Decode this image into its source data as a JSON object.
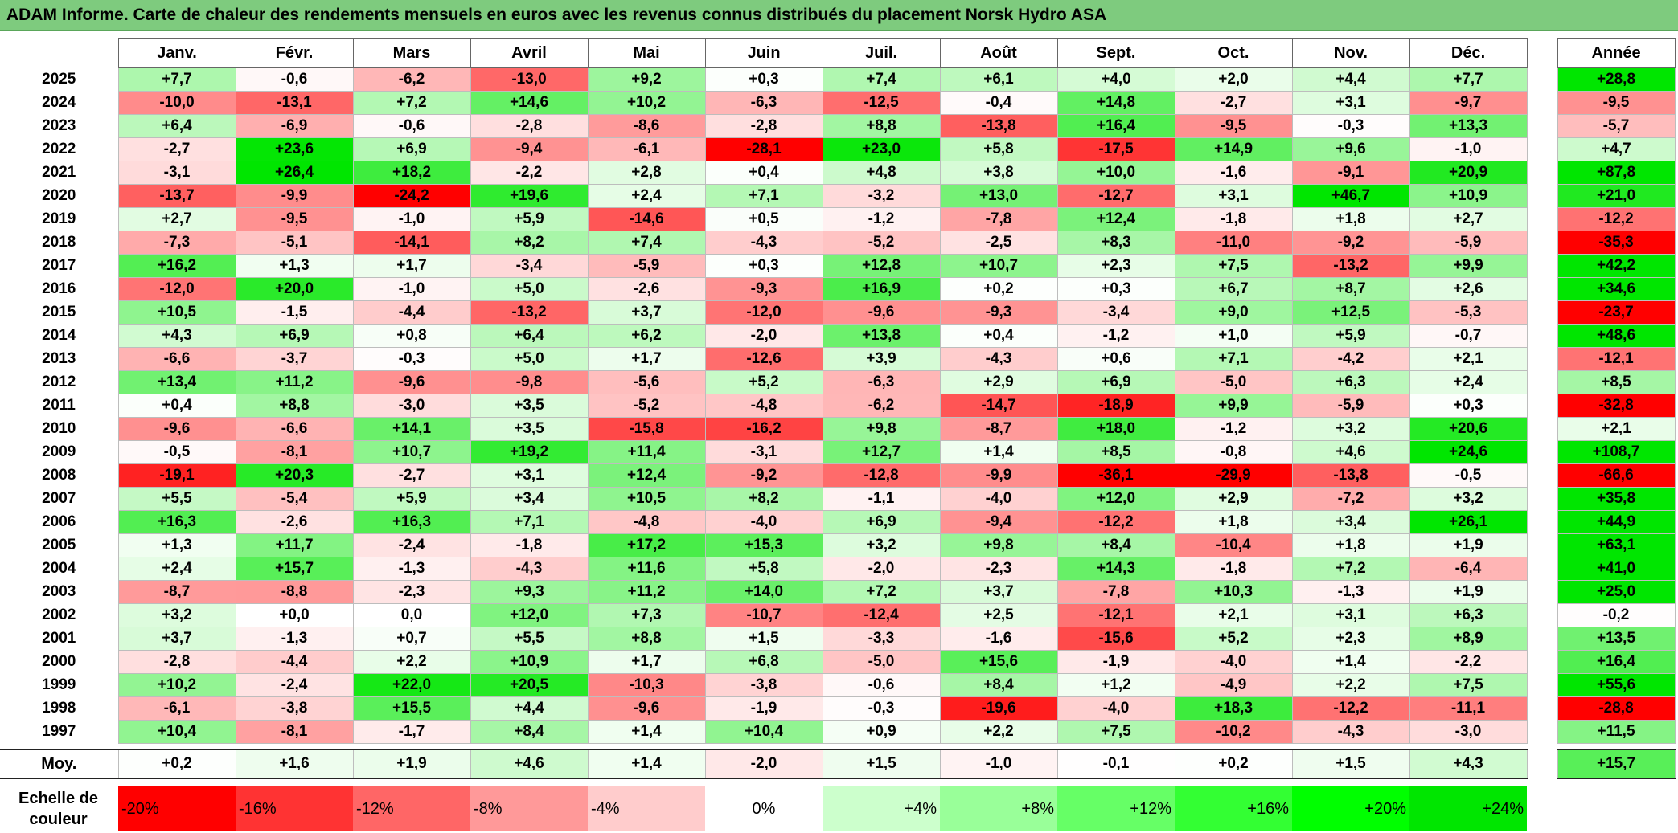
{
  "title": "ADAM Informe. Carte de chaleur des rendements mensuels en euros avec les revenus connus distribués du placement Norsk Hydro ASA",
  "colors": {
    "title_bg": "#7ecb7e",
    "strong_red": "#ff0000",
    "strong_green": "#00e000"
  },
  "chart_data": {
    "type": "heatmap",
    "title": "ADAM Informe. Carte de chaleur des rendements mensuels en euros avec les revenus connus distribués du placement Norsk Hydro ASA",
    "months": [
      "Janv.",
      "Févr.",
      "Mars",
      "Avril",
      "Mai",
      "Juin",
      "Juil.",
      "Août",
      "Sept.",
      "Oct.",
      "Nov.",
      "Déc."
    ],
    "annual_header": "Année",
    "rows": [
      {
        "year": "2025",
        "values": [
          "+7,7",
          "-0,6",
          "-6,2",
          "-13,0",
          "+9,2",
          "+0,3",
          "+7,4",
          "+6,1",
          "+4,0",
          "+2,0",
          "+4,4",
          "+7,7"
        ],
        "annual": "+28,8"
      },
      {
        "year": "2024",
        "values": [
          "-10,0",
          "-13,1",
          "+7,2",
          "+14,6",
          "+10,2",
          "-6,3",
          "-12,5",
          "-0,4",
          "+14,8",
          "-2,7",
          "+3,1",
          "-9,7"
        ],
        "annual": "-9,5"
      },
      {
        "year": "2023",
        "values": [
          "+6,4",
          "-6,9",
          "-0,6",
          "-2,8",
          "-8,6",
          "-2,8",
          "+8,8",
          "-13,8",
          "+16,4",
          "-9,5",
          "-0,3",
          "+13,3"
        ],
        "annual": "-5,7"
      },
      {
        "year": "2022",
        "values": [
          "-2,7",
          "+23,6",
          "+6,9",
          "-9,4",
          "-6,1",
          "-28,1",
          "+23,0",
          "+5,8",
          "-17,5",
          "+14,9",
          "+9,6",
          "-1,0"
        ],
        "annual": "+4,7"
      },
      {
        "year": "2021",
        "values": [
          "-3,1",
          "+26,4",
          "+18,2",
          "-2,2",
          "+2,8",
          "+0,4",
          "+4,8",
          "+3,8",
          "+10,0",
          "-1,6",
          "-9,1",
          "+20,9"
        ],
        "annual": "+87,8"
      },
      {
        "year": "2020",
        "values": [
          "-13,7",
          "-9,9",
          "-24,2",
          "+19,6",
          "+2,4",
          "+7,1",
          "-3,2",
          "+13,0",
          "-12,7",
          "+3,1",
          "+46,7",
          "+10,9"
        ],
        "annual": "+21,0"
      },
      {
        "year": "2019",
        "values": [
          "+2,7",
          "-9,5",
          "-1,0",
          "+5,9",
          "-14,6",
          "+0,5",
          "-1,2",
          "-7,8",
          "+12,4",
          "-1,8",
          "+1,8",
          "+2,7"
        ],
        "annual": "-12,2"
      },
      {
        "year": "2018",
        "values": [
          "-7,3",
          "-5,1",
          "-14,1",
          "+8,2",
          "+7,4",
          "-4,3",
          "-5,2",
          "-2,5",
          "+8,3",
          "-11,0",
          "-9,2",
          "-5,9"
        ],
        "annual": "-35,3"
      },
      {
        "year": "2017",
        "values": [
          "+16,2",
          "+1,3",
          "+1,7",
          "-3,4",
          "-5,9",
          "+0,3",
          "+12,8",
          "+10,7",
          "+2,3",
          "+7,5",
          "-13,2",
          "+9,9"
        ],
        "annual": "+42,2"
      },
      {
        "year": "2016",
        "values": [
          "-12,0",
          "+20,0",
          "-1,0",
          "+5,0",
          "-2,6",
          "-9,3",
          "+16,9",
          "+0,2",
          "+0,3",
          "+6,7",
          "+8,7",
          "+2,6"
        ],
        "annual": "+34,6"
      },
      {
        "year": "2015",
        "values": [
          "+10,5",
          "-1,5",
          "-4,4",
          "-13,2",
          "+3,7",
          "-12,0",
          "-9,6",
          "-9,3",
          "-3,4",
          "+9,0",
          "+12,5",
          "-5,3"
        ],
        "annual": "-23,7"
      },
      {
        "year": "2014",
        "values": [
          "+4,3",
          "+6,9",
          "+0,8",
          "+6,4",
          "+6,2",
          "-2,0",
          "+13,8",
          "+0,4",
          "-1,2",
          "+1,0",
          "+5,9",
          "-0,7"
        ],
        "annual": "+48,6"
      },
      {
        "year": "2013",
        "values": [
          "-6,6",
          "-3,7",
          "-0,3",
          "+5,0",
          "+1,7",
          "-12,6",
          "+3,9",
          "-4,3",
          "+0,6",
          "+7,1",
          "-4,2",
          "+2,1"
        ],
        "annual": "-12,1"
      },
      {
        "year": "2012",
        "values": [
          "+13,4",
          "+11,2",
          "-9,6",
          "-9,8",
          "-5,6",
          "+5,2",
          "-6,3",
          "+2,9",
          "+6,9",
          "-5,0",
          "+6,3",
          "+2,4"
        ],
        "annual": "+8,5"
      },
      {
        "year": "2011",
        "values": [
          "+0,4",
          "+8,8",
          "-3,0",
          "+3,5",
          "-5,2",
          "-4,8",
          "-6,2",
          "-14,7",
          "-18,9",
          "+9,9",
          "-5,9",
          "+0,3"
        ],
        "annual": "-32,8"
      },
      {
        "year": "2010",
        "values": [
          "-9,6",
          "-6,6",
          "+14,1",
          "+3,5",
          "-15,8",
          "-16,2",
          "+9,8",
          "-8,7",
          "+18,0",
          "-1,2",
          "+3,2",
          "+20,6"
        ],
        "annual": "+2,1"
      },
      {
        "year": "2009",
        "values": [
          "-0,5",
          "-8,1",
          "+10,7",
          "+19,2",
          "+11,4",
          "-3,1",
          "+12,7",
          "+1,4",
          "+8,5",
          "-0,8",
          "+4,6",
          "+24,6"
        ],
        "annual": "+108,7"
      },
      {
        "year": "2008",
        "values": [
          "-19,1",
          "+20,3",
          "-2,7",
          "+3,1",
          "+12,4",
          "-9,2",
          "-12,8",
          "-9,9",
          "-36,1",
          "-29,9",
          "-13,8",
          "-0,5"
        ],
        "annual": "-66,6"
      },
      {
        "year": "2007",
        "values": [
          "+5,5",
          "-5,4",
          "+5,9",
          "+3,4",
          "+10,5",
          "+8,2",
          "-1,1",
          "-4,0",
          "+12,0",
          "+2,9",
          "-7,2",
          "+3,2"
        ],
        "annual": "+35,8"
      },
      {
        "year": "2006",
        "values": [
          "+16,3",
          "-2,6",
          "+16,3",
          "+7,1",
          "-4,8",
          "-4,0",
          "+6,9",
          "-9,4",
          "-12,2",
          "+1,8",
          "+3,4",
          "+26,1"
        ],
        "annual": "+44,9"
      },
      {
        "year": "2005",
        "values": [
          "+1,3",
          "+11,7",
          "-2,4",
          "-1,8",
          "+17,2",
          "+15,3",
          "+3,2",
          "+9,8",
          "+8,4",
          "-10,4",
          "+1,8",
          "+1,9"
        ],
        "annual": "+63,1"
      },
      {
        "year": "2004",
        "values": [
          "+2,4",
          "+15,7",
          "-1,3",
          "-4,3",
          "+11,6",
          "+5,8",
          "-2,0",
          "-2,3",
          "+14,3",
          "-1,8",
          "+7,2",
          "-6,4"
        ],
        "annual": "+41,0"
      },
      {
        "year": "2003",
        "values": [
          "-8,7",
          "-8,8",
          "-2,3",
          "+9,3",
          "+11,2",
          "+14,0",
          "+7,2",
          "+3,7",
          "-7,8",
          "+10,3",
          "-1,3",
          "+1,9"
        ],
        "annual": "+25,0"
      },
      {
        "year": "2002",
        "values": [
          "+3,2",
          "+0,0",
          "0,0",
          "+12,0",
          "+7,3",
          "-10,7",
          "-12,4",
          "+2,5",
          "-12,1",
          "+2,1",
          "+3,1",
          "+6,3"
        ],
        "annual": "-0,2"
      },
      {
        "year": "2001",
        "values": [
          "+3,7",
          "-1,3",
          "+0,7",
          "+5,5",
          "+8,8",
          "+1,5",
          "-3,3",
          "-1,6",
          "-15,6",
          "+5,2",
          "+2,3",
          "+8,9"
        ],
        "annual": "+13,5"
      },
      {
        "year": "2000",
        "values": [
          "-2,8",
          "-4,4",
          "+2,2",
          "+10,9",
          "+1,7",
          "+6,8",
          "-5,0",
          "+15,6",
          "-1,9",
          "-4,0",
          "+1,4",
          "-2,2"
        ],
        "annual": "+16,4"
      },
      {
        "year": "1999",
        "values": [
          "+10,2",
          "-2,4",
          "+22,0",
          "+20,5",
          "-10,3",
          "-3,8",
          "-0,6",
          "+8,4",
          "+1,2",
          "-4,9",
          "+2,2",
          "+7,5"
        ],
        "annual": "+55,6"
      },
      {
        "year": "1998",
        "values": [
          "-6,1",
          "-3,8",
          "+15,5",
          "+4,4",
          "-9,6",
          "-1,9",
          "-0,3",
          "-19,6",
          "-4,0",
          "+18,3",
          "-12,2",
          "-11,1"
        ],
        "annual": "-28,8"
      },
      {
        "year": "1997",
        "values": [
          "+10,4",
          "-8,1",
          "-1,7",
          "+8,4",
          "+1,4",
          "+10,4",
          "+0,9",
          "+2,2",
          "+7,5",
          "-10,2",
          "-4,3",
          "-3,0"
        ],
        "annual": "+11,5"
      }
    ],
    "average": {
      "label": "Moy.",
      "values": [
        "+0,2",
        "+1,6",
        "+1,9",
        "+4,6",
        "+1,4",
        "-2,0",
        "+1,5",
        "-1,0",
        "-0,1",
        "+0,2",
        "+1,5",
        "+4,3"
      ],
      "annual": "+15,7"
    },
    "scale": {
      "label_line1": "Echelle de",
      "label_line2": "couleur",
      "stops": [
        "-20%",
        "-16%",
        "-12%",
        "-8%",
        "-4%",
        "0%",
        "+4%",
        "+8%",
        "+12%",
        "+16%",
        "+20%",
        "+24%"
      ],
      "colors": [
        "#ff0000",
        "#ff3333",
        "#ff6666",
        "#ff9999",
        "#ffcccc",
        "#ffffff",
        "#ccffcc",
        "#99ff99",
        "#66ff66",
        "#33ff33",
        "#00ff00",
        "#00e600"
      ]
    }
  }
}
